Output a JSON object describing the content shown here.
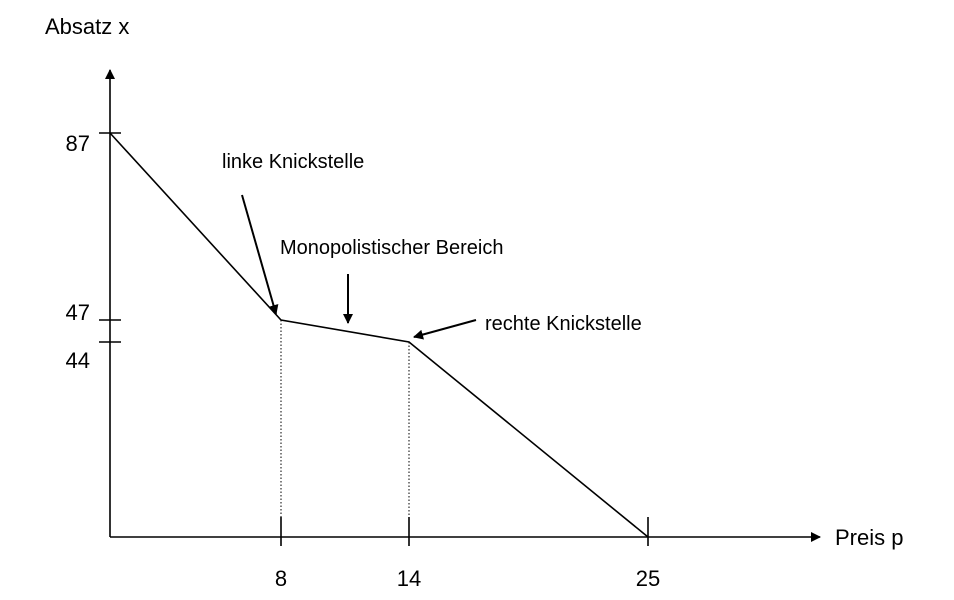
{
  "chart_data": {
    "type": "line",
    "title": "",
    "xlabel": "Preis p",
    "ylabel": "Absatz x",
    "x_ticks": [
      "8",
      "14",
      "25"
    ],
    "y_ticks": [
      "87",
      "47",
      "44"
    ],
    "x": [
      0,
      8,
      14,
      25
    ],
    "y": [
      87,
      47,
      44,
      0
    ],
    "guide_lines_at_x": [
      8,
      14
    ],
    "annotations": {
      "left_kink": "linke Knickstelle",
      "monopolistic_range": "Monopolistischer Bereich",
      "right_kink": "rechte Knickstelle"
    },
    "grid": false,
    "legend": "none"
  }
}
